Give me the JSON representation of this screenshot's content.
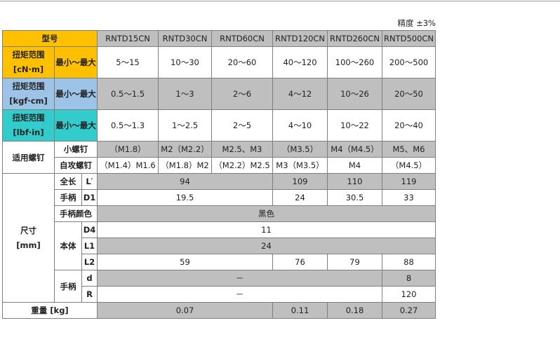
{
  "precision": "精度 ±3%",
  "header": {
    "model": "型号",
    "columns": [
      "RNTD15CN",
      "RNTD30CN",
      "RNTD60CN",
      "RNTD120CN",
      "RNTD260CN",
      "RNTD500CN"
    ]
  },
  "torque": {
    "range_label": "最小～最大",
    "cNm": {
      "label1": "扭矩范围",
      "label2": "[cN·m]",
      "values": [
        "5～15",
        "10～30",
        "20～60",
        "40～120",
        "100～260",
        "200～500"
      ]
    },
    "kgfcm": {
      "label1": "扭矩范围",
      "label2": "[kgf·cm]",
      "values": [
        "0.5～1.5",
        "1～3",
        "2～6",
        "4～12",
        "10～26",
        "20～50"
      ]
    },
    "lbfin": {
      "label1": "扭矩范围",
      "label2": "[lbf·in]",
      "values": [
        "0.5～1.3",
        "1～2.5",
        "2～5",
        "4～10",
        "10～22",
        "20～40"
      ]
    }
  },
  "screws": {
    "label": "适用螺钉",
    "small": {
      "label": "小螺钉",
      "values": [
        "（M1.8）",
        "M2（M2.2）",
        "M2.5、M3",
        "（M3.5）",
        "M4（M4.5）",
        "M5、M6"
      ]
    },
    "tapping": {
      "label": "自攻螺钉",
      "values": [
        "（M1.4）M1.6",
        "（M1.8）M2",
        "（M2.2）M2.5",
        "M3（M3.5）",
        "M4",
        "（M4.5）"
      ]
    }
  },
  "dims": {
    "label1": "尺寸",
    "label2": "[mm]",
    "total_length": {
      "label": "全长",
      "sym": "L′",
      "v1": "94",
      "v2": "109",
      "v3": "110",
      "v4": "119"
    },
    "handle_d1": {
      "label": "手柄",
      "sym": "D1",
      "v1": "19.5",
      "v2": "24",
      "v3": "30.5",
      "v4": "33"
    },
    "handle_color": {
      "label": "手柄颜色",
      "value": "黑色"
    },
    "body": {
      "label": "本体",
      "D4": {
        "sym": "D4",
        "value": "11"
      },
      "L1": {
        "sym": "L1",
        "value": "24"
      },
      "L2": {
        "sym": "L2",
        "v1": "59",
        "v2": "76",
        "v3": "79",
        "v4": "88"
      }
    },
    "handle": {
      "label": "手柄",
      "d": {
        "sym": "d",
        "dash": "－",
        "value": "8"
      },
      "R": {
        "sym": "R",
        "dash": "－",
        "value": "120"
      }
    }
  },
  "weight": {
    "label": "重量 [kg]",
    "v1": "0.07",
    "v2": "0.11",
    "v3": "0.18",
    "v4": "0.27"
  }
}
